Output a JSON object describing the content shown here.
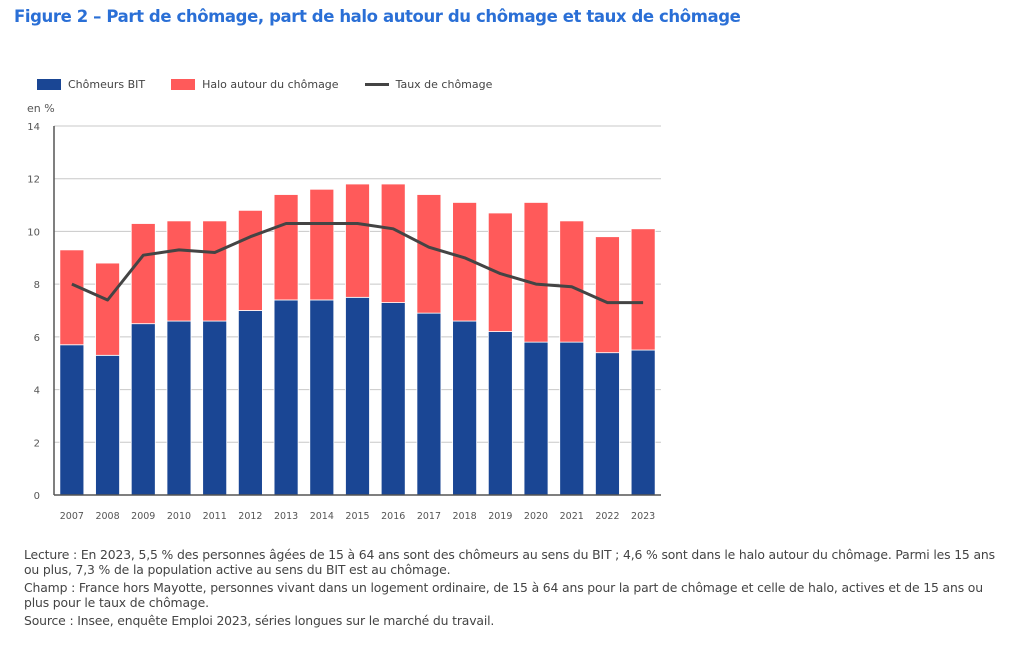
{
  "title": "Figure 2 – Part de chômage, part de halo autour du chômage et taux de chômage",
  "legend": [
    {
      "label": "Chômeurs BIT",
      "type": "bar",
      "color": "#1a4694"
    },
    {
      "label": "Halo autour du chômage",
      "type": "bar",
      "color": "#ff5a5a"
    },
    {
      "label": "Taux de chômage",
      "type": "line",
      "color": "#444444"
    }
  ],
  "unit_label": "en %",
  "notes": {
    "lecture": "Lecture : En 2023, 5,5 % des personnes âgées de 15 à 64 ans sont des chômeurs au sens du BIT ; 4,6 % sont dans le halo autour du chômage. Parmi les 15 ans ou plus, 7,3 % de la population active au sens du BIT est au chômage.",
    "champ": "Champ : France hors Mayotte, personnes vivant dans un logement ordinaire, de 15 à 64 ans pour la part de chômage et celle de halo, actives et de 15 ans ou plus pour le taux de chômage.",
    "source": "Source : Insee, enquête Emploi 2023, séries longues sur le marché du travail."
  },
  "chart_data": {
    "type": "bar",
    "stacked": true,
    "title": "Figure 2 – Part de chômage, part de halo autour du chômage et taux de chômage",
    "xlabel": "",
    "ylabel": "en %",
    "ylim": [
      0,
      14
    ],
    "yticks": [
      0,
      2,
      4,
      6,
      8,
      10,
      12,
      14
    ],
    "grid": true,
    "legend_position": "top-left",
    "categories": [
      "2007",
      "2008",
      "2009",
      "2010",
      "2011",
      "2012",
      "2013",
      "2014",
      "2015",
      "2016",
      "2017",
      "2018",
      "2019",
      "2020",
      "2021",
      "2022",
      "2023"
    ],
    "series": [
      {
        "name": "Chômeurs BIT",
        "type": "bar",
        "color": "#1a4694",
        "values": [
          5.7,
          5.3,
          6.5,
          6.6,
          6.6,
          7.0,
          7.4,
          7.4,
          7.5,
          7.3,
          6.9,
          6.6,
          6.2,
          5.8,
          5.8,
          5.4,
          5.5
        ]
      },
      {
        "name": "Halo autour du chômage",
        "type": "bar",
        "color": "#ff5a5a",
        "values": [
          3.6,
          3.5,
          3.8,
          3.8,
          3.8,
          3.8,
          4.0,
          4.2,
          4.3,
          4.5,
          4.5,
          4.5,
          4.5,
          5.3,
          4.6,
          4.4,
          4.6
        ]
      },
      {
        "name": "Taux de chômage",
        "type": "line",
        "color": "#444444",
        "values": [
          8.0,
          7.4,
          9.1,
          9.3,
          9.2,
          9.8,
          10.3,
          10.3,
          10.3,
          10.1,
          9.4,
          9.0,
          8.4,
          8.0,
          7.9,
          7.3,
          7.3
        ]
      }
    ]
  }
}
